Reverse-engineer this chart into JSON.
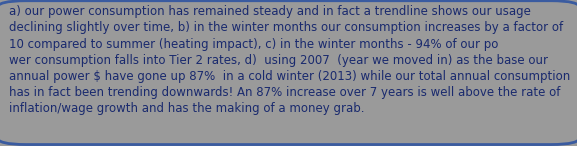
{
  "lines": [
    "a) our power consumption has remained steady and in fact a trendline shows our usage",
    "declining slightly over time, b) in the winter months our consumption increases by a factor of",
    "10 compared to summer (heating impact), c) in the winter months - 94% of our po",
    "wer consumption falls into Tier 2 rates, d)  using 2007  (year we moved in) as the base our",
    "annual power $ have gone up 87%  in a cold winter (2013) while our total annual consumption",
    "has in fact been trending downwards! An 87% increase over 7 years is well above the rate of",
    "inflation/wage growth and has the making of a money grab."
  ],
  "bg_color": "#9a9a9a",
  "border_color": "#3a5ba0",
  "text_color": "#1a2a6e",
  "font_size": 8.5,
  "fig_width": 5.77,
  "fig_height": 1.46,
  "dpi": 100
}
